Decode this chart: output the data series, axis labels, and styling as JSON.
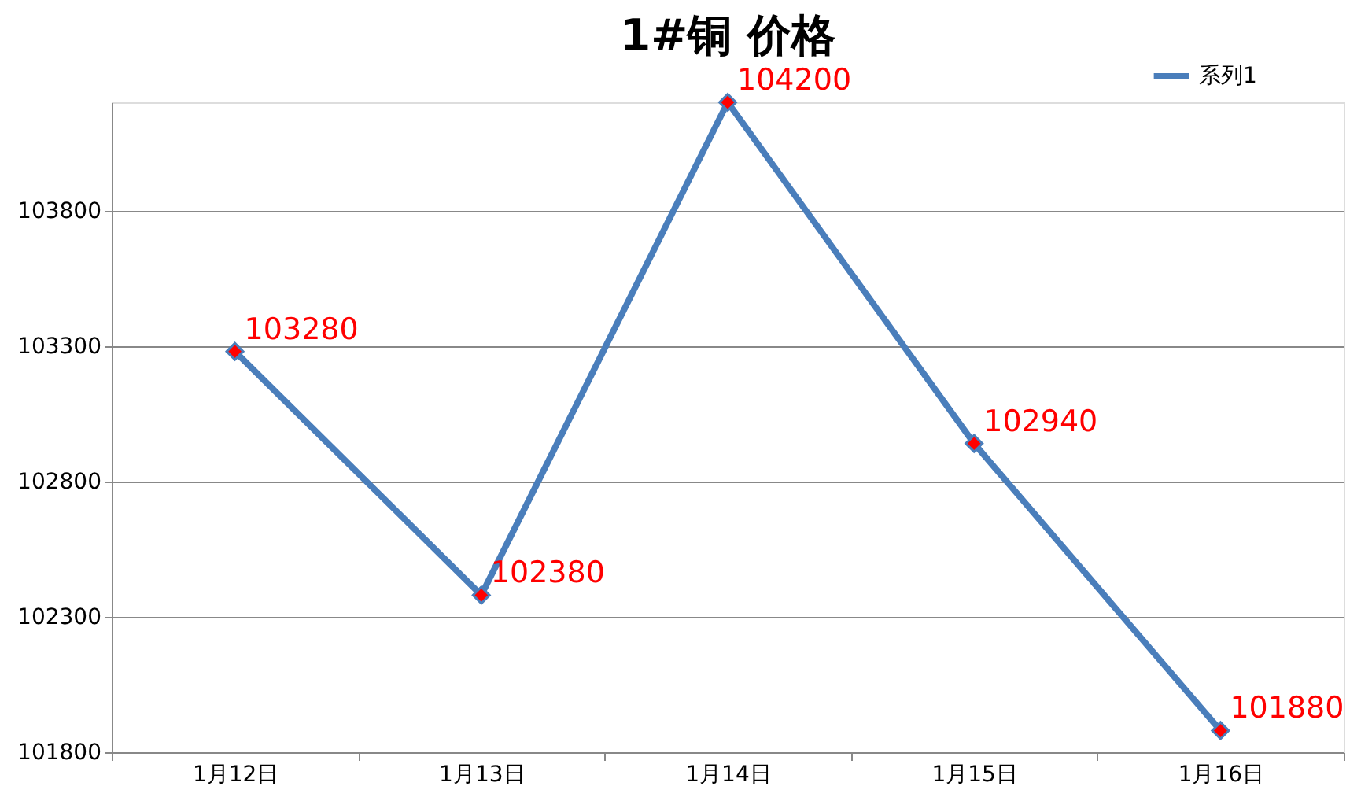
{
  "chart_data": {
    "type": "line",
    "title": "1#铜 价格",
    "categories": [
      "1月12日",
      "1月13日",
      "1月14日",
      "1月15日",
      "1月16日"
    ],
    "series": [
      {
        "name": "系列1",
        "color": "#4a7ebb",
        "values": [
          103280,
          102380,
          104200,
          102940,
          101880
        ]
      }
    ],
    "ylim": [
      101800,
      104200
    ],
    "yticks": [
      101800,
      102300,
      102800,
      103300,
      103800
    ],
    "grid": "y",
    "legend": "top right",
    "marker": "diamond",
    "data_labels": true
  }
}
